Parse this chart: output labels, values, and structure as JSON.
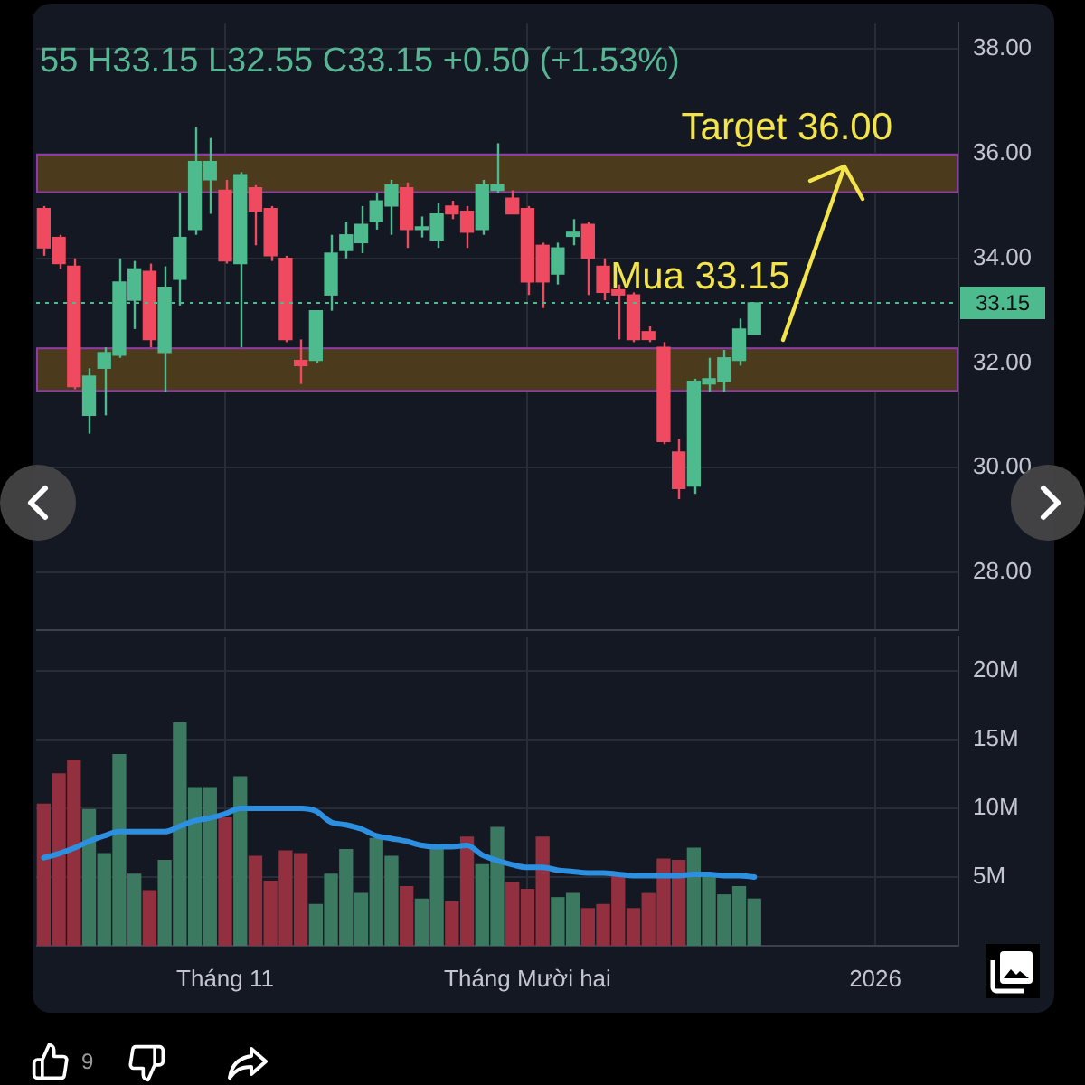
{
  "chart_data": [
    {
      "type": "candlestick",
      "subtitle": "55 H33.15 L32.55 C33.15 +0.50 (+1.53%)",
      "categories": [
        null,
        null,
        null,
        null,
        null,
        null,
        null,
        null,
        null,
        null,
        null,
        null,
        null,
        null,
        null,
        null,
        null,
        null,
        null,
        null,
        null,
        null,
        null,
        null,
        null,
        null,
        null,
        null,
        null,
        null,
        null,
        null,
        null,
        null,
        null,
        null,
        null,
        null,
        null,
        null,
        null,
        null,
        null,
        null,
        null,
        null,
        null,
        null,
        null,
        null,
        null,
        null,
        null,
        null,
        null,
        null,
        null,
        null,
        null,
        null,
        null
      ],
      "ohlc": [
        [
          34.95,
          35.0,
          34.05,
          34.2
        ],
        [
          34.4,
          34.45,
          33.8,
          33.9
        ],
        [
          33.85,
          34.0,
          31.5,
          31.55
        ],
        [
          31.0,
          31.9,
          30.65,
          31.75
        ],
        [
          31.9,
          32.3,
          31.0,
          32.2
        ],
        [
          32.15,
          34.0,
          32.1,
          33.55
        ],
        [
          33.2,
          33.95,
          32.65,
          33.8
        ],
        [
          33.75,
          33.9,
          32.3,
          32.45
        ],
        [
          32.2,
          33.85,
          31.45,
          33.45
        ],
        [
          33.6,
          35.25,
          33.1,
          34.4
        ],
        [
          34.55,
          36.5,
          34.45,
          35.85
        ],
        [
          35.5,
          36.3,
          34.85,
          35.85
        ],
        [
          35.3,
          35.5,
          33.9,
          33.95
        ],
        [
          33.9,
          35.65,
          32.3,
          35.6
        ],
        [
          35.35,
          35.4,
          34.25,
          34.9
        ],
        [
          34.95,
          35.0,
          33.95,
          34.05
        ],
        [
          34.0,
          34.05,
          32.4,
          32.45
        ],
        [
          32.05,
          32.45,
          31.6,
          31.95
        ],
        [
          32.05,
          33.0,
          32.0,
          33.0
        ],
        [
          33.3,
          34.45,
          33.0,
          34.1
        ],
        [
          34.15,
          34.7,
          34.0,
          34.45
        ],
        [
          34.3,
          35.0,
          34.1,
          34.65
        ],
        [
          34.7,
          35.25,
          34.55,
          35.1
        ],
        [
          35.0,
          35.5,
          34.45,
          35.4
        ],
        [
          35.35,
          35.45,
          34.2,
          34.55
        ],
        [
          34.55,
          34.8,
          34.4,
          34.6
        ],
        [
          34.35,
          35.05,
          34.2,
          34.85
        ],
        [
          35.0,
          35.1,
          34.75,
          34.85
        ],
        [
          34.9,
          35.0,
          34.2,
          34.5
        ],
        [
          34.55,
          35.5,
          34.45,
          35.4
        ],
        [
          35.3,
          36.2,
          35.25,
          35.4
        ],
        [
          35.15,
          35.3,
          34.85,
          34.85
        ],
        [
          34.95,
          35.0,
          33.3,
          33.55
        ],
        [
          34.25,
          34.3,
          33.05,
          33.55
        ],
        [
          33.7,
          34.3,
          33.5,
          34.2
        ],
        [
          34.42,
          34.75,
          34.25,
          34.5
        ],
        [
          34.65,
          34.7,
          33.3,
          34.0
        ],
        [
          33.85,
          34.0,
          33.2,
          33.35
        ],
        [
          33.4,
          33.5,
          32.45,
          33.3
        ],
        [
          33.3,
          33.35,
          32.4,
          32.45
        ],
        [
          32.6,
          32.7,
          32.4,
          32.45
        ],
        [
          32.3,
          32.4,
          30.45,
          30.5
        ],
        [
          30.3,
          30.55,
          29.4,
          29.6
        ],
        [
          29.65,
          31.7,
          29.5,
          31.65
        ],
        [
          31.6,
          32.1,
          31.45,
          31.7
        ],
        [
          31.65,
          32.25,
          31.45,
          32.1
        ],
        [
          32.05,
          32.85,
          31.95,
          32.65
        ],
        [
          32.55,
          33.15,
          32.55,
          33.15
        ],
        null,
        null,
        null,
        null,
        null,
        null,
        null,
        null,
        null,
        null,
        null,
        null,
        null
      ],
      "colors": [
        "#ef4a5f",
        "#ef4a5f",
        "#ef4a5f",
        "#4dbb8e",
        "#4dbb8e",
        "#4dbb8e",
        "#4dbb8e",
        "#ef4a5f",
        "#4dbb8e",
        "#4dbb8e",
        "#4dbb8e",
        "#4dbb8e",
        "#ef4a5f",
        "#4dbb8e",
        "#ef4a5f",
        "#ef4a5f",
        "#ef4a5f",
        "#ef4a5f",
        "#4dbb8e",
        "#4dbb8e",
        "#4dbb8e",
        "#4dbb8e",
        "#4dbb8e",
        "#4dbb8e",
        "#ef4a5f",
        "#4dbb8e",
        "#4dbb8e",
        "#ef4a5f",
        "#ef4a5f",
        "#4dbb8e",
        "#4dbb8e",
        "#ef4a5f",
        "#ef4a5f",
        "#ef4a5f",
        "#4dbb8e",
        "#4dbb8e",
        "#ef4a5f",
        "#ef4a5f",
        "#ef4a5f",
        "#ef4a5f",
        "#ef4a5f",
        "#ef4a5f",
        "#ef4a5f",
        "#4dbb8e",
        "#4dbb8e",
        "#4dbb8e",
        "#4dbb8e",
        "#4dbb8e",
        null,
        null,
        null,
        null,
        null,
        null,
        null,
        null,
        null,
        null,
        null,
        null,
        null
      ],
      "ylim": [
        26.9,
        38.5
      ],
      "yticks": [
        {
          "value": 28,
          "label": "28.00"
        },
        {
          "value": 30,
          "label": "30.00"
        },
        {
          "value": 32,
          "label": "32.00"
        },
        {
          "value": 34,
          "label": "34.00"
        },
        {
          "value": 36,
          "label": "36.00"
        },
        {
          "value": 38,
          "label": "38.00"
        }
      ],
      "grid": true,
      "tick_labels": "y",
      "bands": [
        {
          "axis": "y",
          "from": 35.25,
          "to": 36.0,
          "color": "#4b3a1b"
        },
        {
          "axis": "y",
          "from": 31.45,
          "to": 32.3,
          "color": "#4b3a1b"
        }
      ],
      "ref_lines": [
        {
          "axis": "y",
          "value": 33.15,
          "label": "33.15",
          "color": "#4dbb8e",
          "line_style": "dotted"
        }
      ],
      "annotations": [
        {
          "text": "Target 36.00",
          "y": 36
        },
        {
          "text": "Mua 33.15",
          "y": 33.15
        }
      ]
    },
    {
      "type": "bar",
      "categories": [
        null,
        null,
        null,
        null,
        null,
        null,
        null,
        null,
        null,
        null,
        null,
        null,
        "Tháng 11",
        null,
        null,
        null,
        null,
        null,
        null,
        null,
        null,
        null,
        null,
        null,
        null,
        null,
        null,
        null,
        null,
        null,
        null,
        null,
        "Tháng Mười hai",
        null,
        null,
        null,
        null,
        null,
        null,
        null,
        null,
        null,
        null,
        null,
        null,
        null,
        null,
        null,
        null,
        null,
        null,
        null,
        null,
        null,
        null,
        "2026",
        null,
        null,
        null,
        null,
        null
      ],
      "series": [
        {
          "type": "bar",
          "colors": [
            "#93303f",
            "#93303f",
            "#93303f",
            "#3b7a60",
            "#3b7a60",
            "#3b7a60",
            "#3b7a60",
            "#93303f",
            "#3b7a60",
            "#3b7a60",
            "#3b7a60",
            "#3b7a60",
            "#93303f",
            "#3b7a60",
            "#93303f",
            "#93303f",
            "#93303f",
            "#93303f",
            "#3b7a60",
            "#3b7a60",
            "#3b7a60",
            "#3b7a60",
            "#3b7a60",
            "#3b7a60",
            "#93303f",
            "#3b7a60",
            "#3b7a60",
            "#93303f",
            "#93303f",
            "#3b7a60",
            "#3b7a60",
            "#93303f",
            "#93303f",
            "#93303f",
            "#3b7a60",
            "#3b7a60",
            "#93303f",
            "#93303f",
            "#93303f",
            "#93303f",
            "#93303f",
            "#93303f",
            "#93303f",
            "#3b7a60",
            "#3b7a60",
            "#3b7a60",
            "#3b7a60",
            "#3b7a60",
            null,
            null,
            null,
            null,
            null,
            null,
            null,
            null,
            null,
            null,
            null,
            null,
            null
          ],
          "values": [
            10.3,
            12.5,
            13.5,
            9.9,
            6.7,
            13.9,
            5.2,
            4.0,
            6.2,
            16.2,
            11.5,
            11.5,
            9.3,
            12.3,
            6.5,
            4.7,
            6.9,
            6.7,
            3.0,
            5.2,
            7.0,
            3.8,
            7.8,
            6.5,
            4.3,
            3.4,
            7.0,
            3.2,
            7.9,
            5.9,
            8.6,
            4.6,
            4.1,
            7.9,
            3.5,
            3.8,
            2.7,
            3.0,
            5.2,
            2.7,
            3.8,
            6.3,
            6.2,
            7.1,
            5.0,
            3.7,
            4.3,
            3.4,
            null,
            null,
            null,
            null,
            null,
            null,
            null,
            null,
            null,
            null,
            null,
            null,
            null
          ]
        },
        {
          "type": "line",
          "color": "#2d8fe0",
          "values": [
            6.4,
            6.7,
            7.1,
            7.6,
            8.0,
            8.3,
            8.3,
            8.3,
            8.3,
            8.7,
            9.1,
            9.3,
            9.6,
            10.0,
            10.0,
            10.0,
            10.0,
            10.0,
            9.8,
            9.0,
            8.8,
            8.5,
            8.0,
            7.8,
            7.6,
            7.3,
            7.2,
            7.2,
            7.3,
            6.6,
            6.2,
            5.9,
            5.7,
            5.7,
            5.5,
            5.4,
            5.3,
            5.3,
            5.2,
            5.1,
            5.1,
            5.1,
            5.1,
            5.2,
            5.2,
            5.1,
            5.1,
            5.0,
            null,
            null,
            null,
            null,
            null,
            null,
            null,
            null,
            null,
            null,
            null,
            null,
            null
          ]
        }
      ],
      "ylim": [
        0,
        22.5
      ],
      "yticks": [
        {
          "value": 5,
          "label": "5M"
        },
        {
          "value": 10,
          "label": "10M"
        },
        {
          "value": 15,
          "label": "15M"
        },
        {
          "value": 20,
          "label": "20M"
        }
      ],
      "grid": true,
      "annotations": [
        "9"
      ]
    }
  ]
}
